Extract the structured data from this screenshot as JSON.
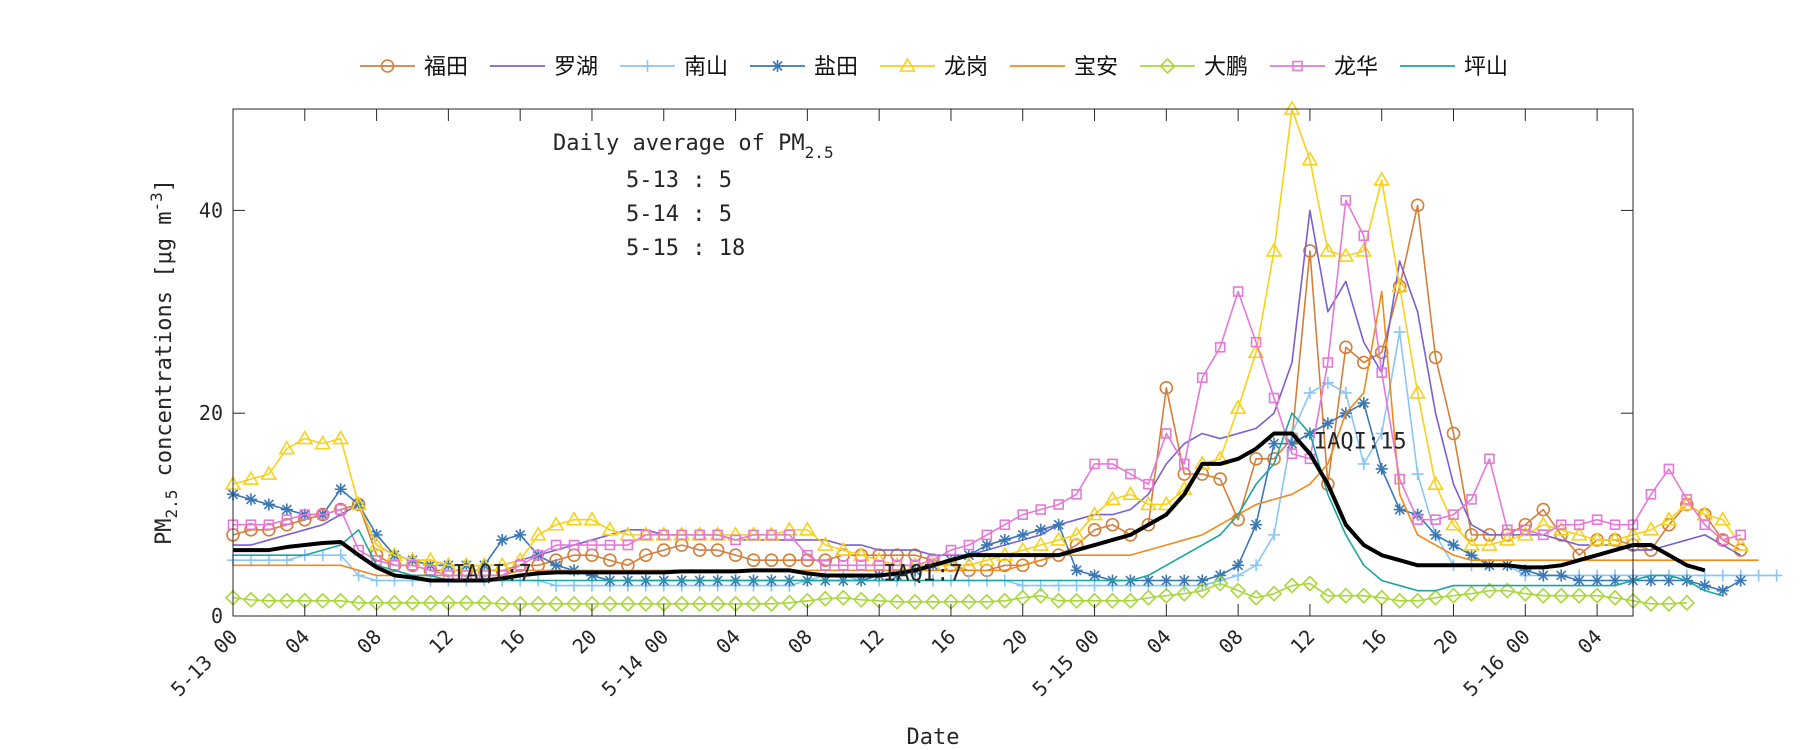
{
  "chart_data": {
    "type": "line",
    "xlabel": "Date",
    "ylabel_main": "PM",
    "ylabel_sub": "2.5",
    "ylabel_rest": " concentrations [",
    "ylabel_mu": "μ",
    "ylabel_unit": "g m",
    "ylabel_exp": "-3",
    "ylabel_close": "]",
    "ylim": [
      0,
      50
    ],
    "yticks": [
      0,
      20,
      40
    ],
    "xlim": [
      0,
      78
    ],
    "x_unit": "hours since 5-13 00",
    "xticks": [
      {
        "x": 0,
        "label": "5-13 00"
      },
      {
        "x": 4,
        "label": "04"
      },
      {
        "x": 8,
        "label": "08"
      },
      {
        "x": 12,
        "label": "12"
      },
      {
        "x": 16,
        "label": "16"
      },
      {
        "x": 20,
        "label": "20"
      },
      {
        "x": 24,
        "label": "5-14 00"
      },
      {
        "x": 28,
        "label": "04"
      },
      {
        "x": 32,
        "label": "08"
      },
      {
        "x": 36,
        "label": "12"
      },
      {
        "x": 40,
        "label": "16"
      },
      {
        "x": 44,
        "label": "20"
      },
      {
        "x": 48,
        "label": "5-15 00"
      },
      {
        "x": 52,
        "label": "04"
      },
      {
        "x": 56,
        "label": "08"
      },
      {
        "x": 60,
        "label": "12"
      },
      {
        "x": 64,
        "label": "16"
      },
      {
        "x": 68,
        "label": "20"
      },
      {
        "x": 72,
        "label": "5-16 00"
      },
      {
        "x": 76,
        "label": "04"
      }
    ],
    "legend_position": "top, outside, horizontal",
    "series": [
      {
        "name": "福田",
        "color": "#d47f3a",
        "marker": "circle",
        "values": [
          8,
          8.5,
          8.5,
          9,
          9.5,
          10,
          10.5,
          11,
          6,
          5,
          5,
          4.5,
          4.5,
          4.5,
          4.5,
          4.5,
          5,
          5,
          5.5,
          6,
          6,
          5.5,
          5,
          6,
          6.5,
          7,
          6.5,
          6.5,
          6,
          5.5,
          5.5,
          5.5,
          5.5,
          5.5,
          6,
          6,
          6,
          6,
          6,
          5.5,
          5,
          4.5,
          4.5,
          5,
          5,
          5.5,
          6,
          7,
          8.5,
          9,
          8,
          9,
          22.5,
          14,
          14,
          13.5,
          9.5,
          15.5,
          15.5,
          17.5,
          36,
          13,
          26.5,
          25,
          26,
          32.5,
          40.5,
          25.5,
          18,
          8,
          8,
          8,
          9,
          10.5,
          8,
          6,
          7.5,
          7.5,
          7,
          6.5,
          9,
          11,
          10,
          7.5,
          6.5
        ]
      },
      {
        "name": "罗湖",
        "color": "#7b5fd0",
        "marker": "none",
        "values": [
          7,
          7,
          7.5,
          8,
          8.5,
          9,
          10,
          11,
          7,
          6,
          5.5,
          5.5,
          5,
          5,
          5,
          5,
          5.5,
          6,
          6.5,
          7,
          7.5,
          8,
          8.5,
          8.5,
          8,
          8,
          8,
          8,
          7.5,
          7.5,
          7.5,
          7.5,
          7.5,
          7.5,
          7,
          7,
          6.5,
          6.5,
          6.5,
          6,
          6,
          6,
          6.5,
          7,
          7.5,
          8,
          9,
          9.5,
          10,
          10,
          10.5,
          12,
          15,
          17,
          18,
          17.5,
          18,
          18.5,
          20,
          25,
          40,
          30,
          33,
          27,
          24,
          35,
          30,
          20,
          13,
          9,
          8,
          8,
          8,
          8,
          7.5,
          7,
          7,
          7,
          6.5,
          6.5,
          7,
          7.5,
          8,
          7,
          6
        ]
      },
      {
        "name": "南山",
        "color": "#8ac6f5",
        "marker": "plus",
        "values": [
          5.5,
          5.5,
          5.5,
          5.5,
          6,
          6,
          6,
          4,
          3.5,
          3.5,
          3.5,
          3.5,
          3.5,
          3.5,
          3.5,
          3.5,
          3.5,
          3.5,
          3,
          3,
          3,
          3,
          3,
          3,
          3,
          3,
          3,
          3,
          3,
          3,
          3,
          3,
          3.5,
          4,
          4,
          3.5,
          3.5,
          3.5,
          3.5,
          3.5,
          3.5,
          3.5,
          3.5,
          3.5,
          3,
          3,
          3,
          3,
          3,
          3,
          3,
          3,
          3,
          3,
          3,
          3.5,
          4,
          5,
          8,
          18,
          22,
          23,
          22,
          15,
          18,
          28,
          14,
          8,
          5,
          5,
          5,
          5,
          4,
          4,
          4,
          4,
          4,
          4,
          4,
          4,
          4,
          4,
          4,
          4,
          4,
          4,
          4
        ]
      },
      {
        "name": "盐田",
        "color": "#3c78b4",
        "marker": "star",
        "values": [
          12,
          11.5,
          11,
          10.5,
          10,
          10,
          12.5,
          11,
          8,
          6,
          5.5,
          5,
          5,
          5,
          5,
          7.5,
          8,
          6,
          5,
          4.5,
          4,
          3.5,
          3.5,
          3.5,
          3.5,
          3.5,
          3.5,
          3.5,
          3.5,
          3.5,
          3.5,
          3.5,
          3.5,
          3.5,
          3.5,
          3.5,
          4,
          4,
          4.5,
          5,
          5.5,
          6,
          7,
          7.5,
          8,
          8.5,
          9,
          4.5,
          4,
          3.5,
          3.5,
          3.5,
          3.5,
          3.5,
          3.5,
          4,
          5,
          9,
          17,
          17,
          18,
          19,
          20,
          21,
          14.5,
          10.5,
          10,
          8,
          7,
          6,
          5,
          5,
          4.5,
          4,
          4,
          3.5,
          3.5,
          3.5,
          3.5,
          3.5,
          3.5,
          3.5,
          3,
          2.5,
          3.5
        ]
      },
      {
        "name": "龙岗",
        "color": "#f7d11a",
        "marker": "triangle",
        "values": [
          13,
          13.5,
          14,
          16.5,
          17.5,
          17,
          17.5,
          11,
          7,
          6,
          5.5,
          5.5,
          5,
          5,
          5,
          5,
          5.5,
          8,
          9,
          9.5,
          9.5,
          8.5,
          8,
          8,
          8,
          8,
          8,
          8,
          8,
          8,
          8,
          8.5,
          8.5,
          7,
          6.5,
          6,
          5.5,
          5,
          5,
          5,
          5,
          5,
          5.5,
          6,
          6.5,
          7,
          7.5,
          8,
          10,
          11.5,
          12,
          11,
          11,
          12.5,
          15,
          15.5,
          20.5,
          26,
          36,
          50,
          45,
          36,
          35.5,
          36,
          43,
          32.5,
          22,
          13,
          9,
          7,
          7,
          7.5,
          8,
          9,
          8.5,
          8,
          7.5,
          7.5,
          8,
          8.5,
          9.5,
          11,
          10,
          9.5,
          7
        ]
      },
      {
        "name": "宝安",
        "color": "#f08a1c",
        "marker": "none",
        "values": [
          5,
          5,
          5,
          5,
          5,
          5,
          5,
          4.5,
          4,
          4,
          4,
          4,
          4,
          4,
          4,
          4,
          4.5,
          4.5,
          4.5,
          4.5,
          4.5,
          4.5,
          4.5,
          4.5,
          4.5,
          4.5,
          4.5,
          4.5,
          4.5,
          4.5,
          4.5,
          4.5,
          4.5,
          4.5,
          4.5,
          4.5,
          4.5,
          4.5,
          4.5,
          4.5,
          4.5,
          4.5,
          4.5,
          4.5,
          5,
          5.5,
          6,
          6,
          6,
          6,
          6,
          6.5,
          7,
          7.5,
          8,
          9,
          10,
          11,
          11.5,
          12,
          13,
          15,
          20,
          22,
          32,
          12,
          8,
          7,
          6,
          5.5,
          5.5,
          5.5,
          5.5,
          5.5,
          5.5,
          5.5,
          5.5,
          5.5,
          5.5,
          5.5,
          5.5,
          5.5,
          5.5,
          5.5,
          5.5,
          5.5
        ]
      },
      {
        "name": "大鹏",
        "color": "#a8d83a",
        "marker": "diamond",
        "values": [
          1.8,
          1.6,
          1.5,
          1.5,
          1.5,
          1.5,
          1.5,
          1.3,
          1.3,
          1.3,
          1.3,
          1.3,
          1.3,
          1.3,
          1.3,
          1.2,
          1.2,
          1.2,
          1.2,
          1.2,
          1.2,
          1.2,
          1.2,
          1.2,
          1.2,
          1.2,
          1.2,
          1.2,
          1.2,
          1.2,
          1.2,
          1.3,
          1.5,
          1.7,
          1.8,
          1.6,
          1.5,
          1.4,
          1.4,
          1.4,
          1.4,
          1.4,
          1.4,
          1.5,
          1.8,
          2,
          1.5,
          1.5,
          1.5,
          1.5,
          1.5,
          1.8,
          2,
          2.2,
          2.5,
          3.2,
          2.5,
          1.8,
          2.2,
          3,
          3.2,
          2,
          2,
          2,
          1.8,
          1.5,
          1.5,
          1.8,
          2,
          2.2,
          2.5,
          2.5,
          2.2,
          2,
          2,
          2,
          2,
          1.8,
          1.5,
          1.2,
          1.2,
          1.3
        ]
      },
      {
        "name": "龙华",
        "color": "#e479d6",
        "marker": "square",
        "values": [
          9,
          9,
          9,
          9.5,
          10,
          10,
          10.5,
          6.5,
          5.5,
          5,
          5,
          4.5,
          4,
          4,
          4,
          4,
          5,
          6,
          7,
          7,
          7,
          7,
          7,
          8,
          8,
          8,
          8,
          8,
          7.5,
          8,
          8,
          8,
          6,
          5,
          5,
          5,
          5,
          5,
          5,
          5.5,
          6.5,
          7,
          8,
          9,
          10,
          10.5,
          11,
          12,
          15,
          15,
          14,
          13,
          18,
          15,
          23.5,
          26.5,
          32,
          27,
          21.5,
          16,
          15.5,
          25,
          41,
          37.5,
          24,
          13.5,
          9.5,
          9.5,
          10,
          11.5,
          15.5,
          8.5,
          8.5,
          8,
          9,
          9,
          9.5,
          9,
          9,
          12,
          14.5,
          11.5,
          9,
          7.5,
          8
        ]
      },
      {
        "name": "坪山",
        "color": "#1aa5a0",
        "marker": "none",
        "values": [
          6,
          6,
          6,
          6,
          6,
          6.5,
          7,
          8.5,
          5,
          4.5,
          4,
          4,
          3.5,
          3.5,
          3.5,
          3.5,
          3.5,
          3.5,
          3.5,
          3.5,
          3.5,
          3.5,
          3.5,
          3.5,
          3.5,
          3.5,
          3.5,
          3.5,
          3.5,
          3.5,
          3.5,
          3.5,
          3.5,
          3.5,
          3.5,
          3.5,
          3.5,
          3.5,
          3.5,
          3.5,
          3.5,
          3.5,
          3.5,
          3.5,
          3.5,
          3.5,
          3.5,
          3.5,
          3.5,
          3.5,
          3.5,
          4,
          5,
          6,
          7,
          8,
          10,
          13,
          15,
          20,
          18,
          12,
          8,
          5,
          3.5,
          3,
          2.5,
          2.5,
          3,
          3,
          3,
          3,
          3,
          3,
          3,
          3,
          3,
          3,
          3.5,
          4,
          4,
          3.5,
          2.5,
          2
        ]
      },
      {
        "name": "",
        "color": "#000000",
        "marker": "none",
        "bold": true,
        "values": [
          6.5,
          6.5,
          6.5,
          6.8,
          7,
          7.2,
          7.3,
          6,
          4.8,
          4,
          3.8,
          3.5,
          3.5,
          3.5,
          3.5,
          3.7,
          4,
          4.2,
          4.3,
          4.3,
          4.3,
          4.3,
          4.3,
          4.3,
          4.3,
          4.4,
          4.4,
          4.4,
          4.4,
          4.5,
          4.5,
          4.5,
          4.2,
          4,
          4,
          4,
          4,
          4.2,
          4.5,
          5,
          5.5,
          6,
          6,
          6,
          6,
          6,
          6,
          6.5,
          7,
          7.5,
          8,
          9,
          10,
          12,
          15,
          15,
          15.5,
          16.5,
          18,
          18,
          16,
          13,
          9,
          7,
          6,
          5.5,
          5,
          5,
          5,
          5,
          5,
          5,
          4.8,
          4.8,
          5,
          5.5,
          6,
          6.5,
          7,
          7,
          6,
          5,
          4.5
        ]
      }
    ],
    "annotations": {
      "avg_title_main": "Daily average of PM",
      "avg_title_sub": "2.5",
      "averages": [
        "5-13 : 5",
        "5-14 : 5",
        "5-15 : 18"
      ],
      "iaqi_labels": [
        {
          "text": "IAQI:7",
          "x": 12,
          "y": 3.5
        },
        {
          "text": "IAQI:7",
          "x": 36,
          "y": 3.5
        },
        {
          "text": "IAQI:15",
          "x": 60,
          "y": 16.5
        }
      ]
    }
  }
}
